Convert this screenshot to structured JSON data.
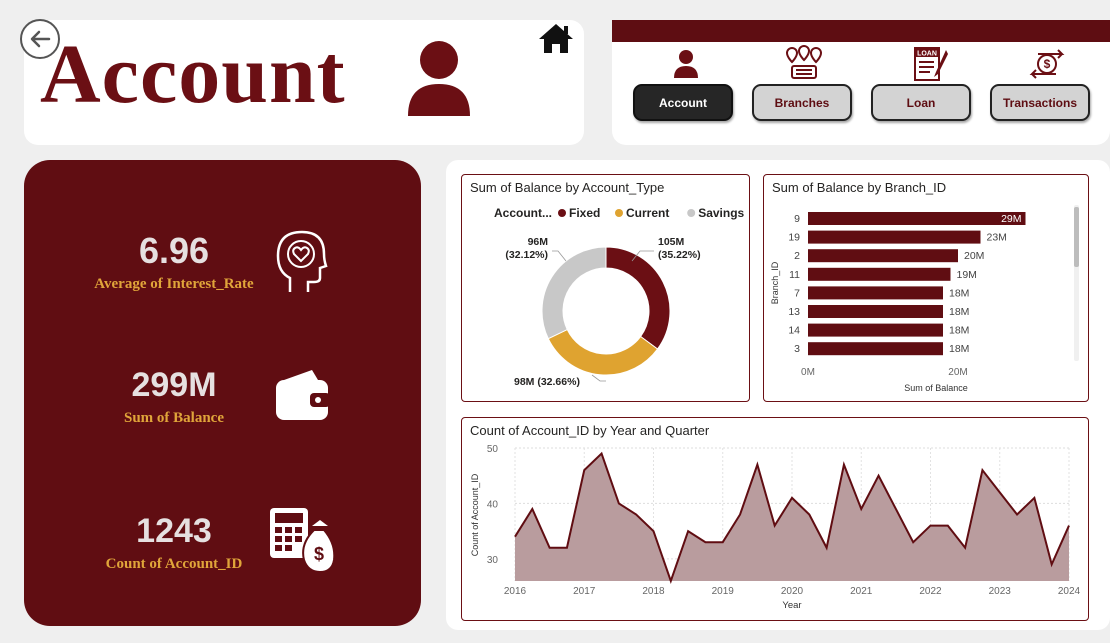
{
  "header": {
    "title": "Account",
    "back_label": "Back",
    "home_label": "Home"
  },
  "nav": {
    "buttons": [
      {
        "label": "Account",
        "icon": "person-icon",
        "active": true
      },
      {
        "label": "Branches",
        "icon": "branches-icon",
        "active": false
      },
      {
        "label": "Loan",
        "icon": "loan-icon",
        "active": false
      },
      {
        "label": "Transactions",
        "icon": "transactions-icon",
        "active": false
      }
    ]
  },
  "kpis": [
    {
      "value": "6.96",
      "label": "Average of Interest_Rate",
      "icon": "head-heart-icon"
    },
    {
      "value": "299M",
      "label": "Sum of Balance",
      "icon": "wallet-icon"
    },
    {
      "value": "1243",
      "label": "Count of Account_ID",
      "icon": "calculator-money-icon"
    }
  ],
  "colors": {
    "primary": "#600d12",
    "accent": "#e0a53a",
    "savings": "#c8c8c8"
  },
  "chart_data": [
    {
      "type": "pie",
      "title": "Sum of Balance by Account_Type",
      "legend_title": "Account...",
      "legend_position": "top",
      "labels": [
        "Fixed",
        "Current",
        "Savings"
      ],
      "values": [
        105,
        98,
        96
      ],
      "value_labels": [
        "105M",
        "98M",
        "96M"
      ],
      "percent_labels": [
        "(35.22%)",
        "(32.66%)",
        "(32.12%)"
      ],
      "colors": [
        "#6b0f14",
        "#dfa330",
        "#c8c8c8"
      ]
    },
    {
      "type": "bar",
      "orientation": "horizontal",
      "title": "Sum of Balance by Branch_ID",
      "categories": [
        "9",
        "19",
        "2",
        "11",
        "7",
        "13",
        "14",
        "3"
      ],
      "values": [
        29,
        23,
        20,
        19,
        18,
        18,
        18,
        18
      ],
      "value_labels": [
        "29M",
        "23M",
        "20M",
        "19M",
        "18M",
        "18M",
        "18M",
        "18M"
      ],
      "xlabel": "Sum of Balance",
      "ylabel": "Branch_ID",
      "xticks": [
        "0M",
        "20M"
      ],
      "xlim": [
        0,
        36
      ]
    },
    {
      "type": "area",
      "title": "Count of Account_ID by Year and Quarter",
      "xlabel": "Year",
      "ylabel": "Count of Account_ID",
      "x_start": 2016,
      "x_end": 2024,
      "xticks": [
        "2016",
        "2017",
        "2018",
        "2019",
        "2020",
        "2021",
        "2022",
        "2023",
        "2024"
      ],
      "yticks": [
        "30",
        "40",
        "50"
      ],
      "ylim": [
        26,
        50
      ],
      "values": [
        34,
        39,
        32,
        32,
        46,
        49,
        40,
        38,
        35,
        26,
        35,
        33,
        33,
        38,
        47,
        36,
        41,
        38,
        32,
        47,
        39,
        45,
        39,
        33,
        36,
        36,
        32,
        46,
        42,
        38,
        41,
        29,
        36
      ],
      "grid": true
    }
  ]
}
